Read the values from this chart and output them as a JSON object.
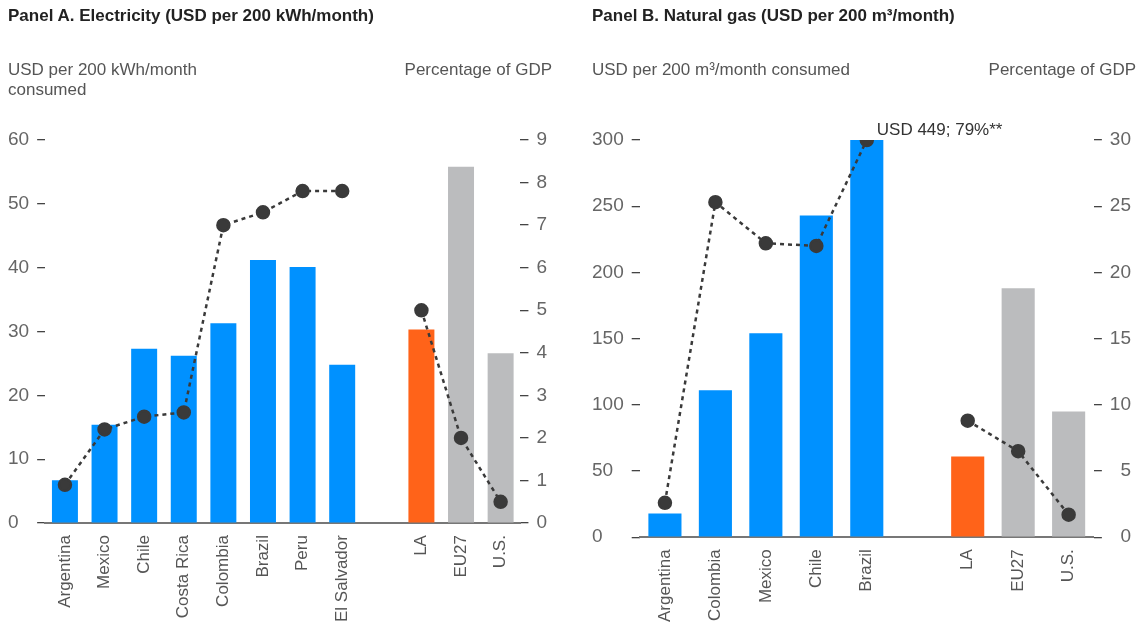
{
  "chart_data": [
    {
      "type": "bar",
      "title": "Panel A. Electricity (USD per 200 kWh/month)",
      "ylabel": "USD per 200 kWh/month consumed",
      "y2label": "Percentage of GDP",
      "categories": [
        "Argentina",
        "Mexico",
        "Chile",
        "Costa Rica",
        "Colombia",
        "Brazil",
        "Peru",
        "El Salvador",
        null,
        "LA",
        "EU27",
        "U.S."
      ],
      "series": [
        {
          "colors": [
            "#0091ff",
            "#0091ff",
            "#0091ff",
            "#0091ff",
            "#0091ff",
            "#0091ff",
            "#0091ff",
            "#0091ff",
            "#0091ff",
            "#ff6319",
            "#bbbcbe",
            "#bbbcbe"
          ],
          "values": [
            6.7,
            15.4,
            27.3,
            26.2,
            31.3,
            41.2,
            40.1,
            24.8,
            null,
            30.3,
            55.8,
            26.6
          ]
        },
        {
          "type": "line",
          "axis": "y2",
          "color": "#3a3a3a",
          "values": [
            0.9,
            2.2,
            2.5,
            2.6,
            7.0,
            7.3,
            7.8,
            7.8,
            null,
            5.0,
            2.0,
            0.5
          ]
        }
      ],
      "ylim": [
        0,
        60
      ],
      "yticks": [
        0,
        10,
        20,
        30,
        40,
        50,
        60
      ],
      "y2lim": [
        0,
        9
      ],
      "y2ticks": [
        0,
        1,
        2,
        3,
        4,
        5,
        6,
        7,
        8,
        9
      ],
      "grid": false,
      "legend": false,
      "marker": "circle",
      "line_style": "dashed"
    },
    {
      "type": "bar",
      "title": "Panel B. Natural gas (USD per 200 m³/month)",
      "ylabel": "USD per 200 m³/month consumed",
      "y2label": "Percentage of GDP",
      "categories": [
        "Argentina",
        "Colombia",
        "Mexico",
        "Chile",
        "Brazil",
        null,
        "LA",
        "EU27",
        "U.S."
      ],
      "series": [
        {
          "colors": [
            "#0091ff",
            "#0091ff",
            "#0091ff",
            "#0091ff",
            "#0091ff",
            "#0091ff",
            "#ff6319",
            "#bbbcbe",
            "#bbbcbe"
          ],
          "values": [
            18,
            111,
            154,
            243,
            300,
            null,
            61,
            188,
            95
          ]
        },
        {
          "type": "line",
          "axis": "y2",
          "color": "#3a3a3a",
          "values": [
            2.6,
            25.3,
            22.2,
            22.0,
            30,
            null,
            8.8,
            6.5,
            1.7
          ]
        }
      ],
      "ylim": [
        0,
        300
      ],
      "yticks": [
        0,
        50,
        100,
        150,
        200,
        250,
        300
      ],
      "y2lim": [
        0,
        30
      ],
      "y2ticks": [
        0,
        5,
        10,
        15,
        20,
        25,
        30
      ],
      "annotations": [
        {
          "text": "USD 449; 79%**",
          "x": "Brazil",
          "y": 300
        }
      ],
      "grid": false,
      "legend": false,
      "marker": "circle",
      "line_style": "dashed"
    }
  ]
}
